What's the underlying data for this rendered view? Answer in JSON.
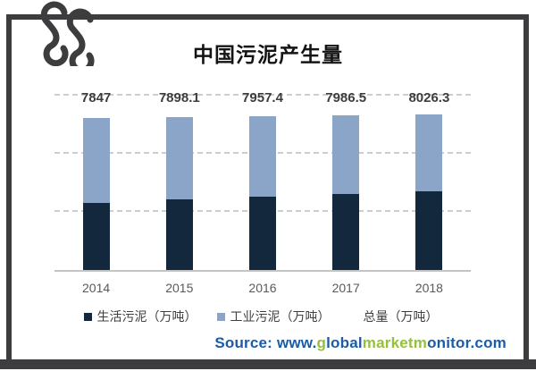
{
  "title": "中国污泥产生量",
  "chart_data": {
    "type": "bar",
    "stacked": true,
    "title": "中国污泥产生量",
    "categories": [
      "2014",
      "2015",
      "2016",
      "2017",
      "2018"
    ],
    "series": [
      {
        "name": "生活污泥（万吨）",
        "color": "#14283d",
        "estimated": true,
        "values": [
          3480,
          3650,
          3800,
          3930,
          4070
        ]
      },
      {
        "name": "工业污泥（万吨）",
        "color": "#8aa5c8",
        "estimated": true,
        "values": [
          4367,
          4248.1,
          4157.4,
          4056.5,
          3956.3
        ]
      }
    ],
    "totals": {
      "name": "总量（万吨）",
      "values": [
        7847,
        7898.1,
        7957.4,
        7986.5,
        8026.3
      ]
    },
    "total_labels": [
      "7847",
      "7898.1",
      "7957.4",
      "7986.5",
      "8026.3"
    ],
    "xlabel": "",
    "ylabel": "",
    "ylim": [
      0,
      9000
    ],
    "gridline_values": [
      3000,
      6000,
      9000
    ],
    "grid_style": "dashed horizontal, no y-axis tick labels",
    "legend_position": "bottom"
  },
  "legend": {
    "items": [
      {
        "label": "生活污泥（万吨）",
        "swatch": "#14283d"
      },
      {
        "label": "工业污泥（万吨）",
        "swatch": "#8aa5c8"
      },
      {
        "label": "总量（万吨）",
        "swatch": null
      }
    ]
  },
  "footer": {
    "source_segments": [
      {
        "text": "Source: www.",
        "color": "#1c5ba6"
      },
      {
        "text": "g",
        "color": "#93c13c"
      },
      {
        "text": "lobal",
        "color": "#1c5ba6"
      },
      {
        "text": "market",
        "color": "#93c13c"
      },
      {
        "text": "m",
        "color": "#93c13c"
      },
      {
        "text": "onitor.com",
        "color": "#1c5ba6"
      }
    ]
  },
  "colors": {
    "frame": "#3d3d3f",
    "series_dark": "#14283d",
    "series_light": "#8aa5c8",
    "gridline": "#cdcdcd",
    "source_blue": "#1c5ba6",
    "source_green": "#93c13c"
  }
}
